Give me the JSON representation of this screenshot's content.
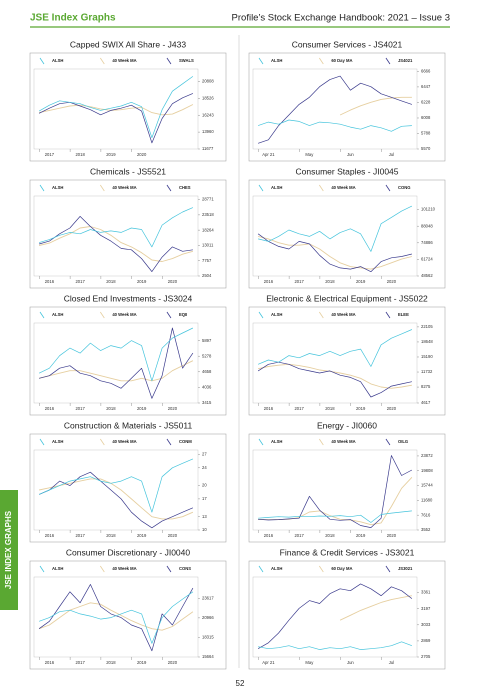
{
  "header": {
    "left": "JSE Index Graphs",
    "right": "Profile’s Stock Exchange Handbook: 2021 – Issue 3"
  },
  "side_tab": "JSE INDEX GRAPHS",
  "page_number": "52",
  "chart_data": [
    {
      "type": "line",
      "title": "Capped SWIX All Share - J433",
      "categories": [
        null,
        "2017",
        null,
        null,
        "2018",
        null,
        null,
        "2019",
        null,
        null,
        "2020",
        null,
        null,
        null,
        null,
        null
      ],
      "ylim": [
        11677,
        22500
      ],
      "yticks": [
        11677,
        13960,
        16243,
        18526,
        20808
      ],
      "series": [
        {
          "name": "ALSH",
          "color": "#45c4dc",
          "values": [
            16800,
            17600,
            18200,
            18000,
            17800,
            17300,
            16900,
            17200,
            17500,
            18000,
            17400,
            13200,
            17000,
            19500,
            20500,
            21500
          ]
        },
        {
          "name": "40 Week MA",
          "color": "#e6cfa0",
          "values": [
            16600,
            16900,
            17200,
            17500,
            17600,
            17400,
            17100,
            16900,
            17000,
            17200,
            17300,
            16600,
            16300,
            16400,
            17000,
            17700
          ]
        },
        {
          "name": "SWALS",
          "color": "#3a3a8c",
          "values": [
            16500,
            17200,
            17800,
            18000,
            17500,
            17000,
            16300,
            16900,
            17200,
            17600,
            16800,
            12500,
            15800,
            17800,
            18600,
            19200
          ]
        }
      ]
    },
    {
      "type": "line",
      "title": "Consumer Services - JS4021",
      "categories": [
        null,
        "Apr 21",
        null,
        null,
        null,
        "May",
        null,
        null,
        null,
        "Jun",
        null,
        null,
        null,
        "Jul",
        null,
        null
      ],
      "ylim": [
        5570,
        6700
      ],
      "yticks": [
        5570,
        5788,
        6008,
        6228,
        6447,
        6666
      ],
      "series": [
        {
          "name": "ALSH",
          "color": "#45c4dc",
          "values": [
            5900,
            5950,
            5920,
            5980,
            5960,
            5900,
            5950,
            5940,
            5920,
            5880,
            5850,
            5900,
            5870,
            5820,
            5890,
            5900
          ]
        },
        {
          "name": "60 Day MA",
          "color": "#e6cfa0",
          "values": [
            null,
            null,
            null,
            null,
            null,
            null,
            null,
            null,
            6050,
            6120,
            6180,
            6230,
            6270,
            6290,
            6300,
            6300
          ]
        },
        {
          "name": "JS4021",
          "color": "#3a3a8c",
          "values": [
            5650,
            5700,
            5900,
            6050,
            6200,
            6300,
            6450,
            6550,
            6600,
            6400,
            6500,
            6450,
            6350,
            6300,
            6250,
            6200
          ]
        }
      ]
    },
    {
      "type": "line",
      "title": "Chemicals - JS5521",
      "categories": [
        null,
        "2016",
        null,
        null,
        "2017",
        null,
        null,
        "2018",
        null,
        null,
        "2019",
        null,
        null,
        "2020",
        null,
        null
      ],
      "ylim": [
        2504,
        30000
      ],
      "yticks": [
        2504,
        7757,
        13011,
        18264,
        23518,
        28771
      ],
      "series": [
        {
          "name": "ALSH",
          "color": "#45c4dc",
          "values": [
            14000,
            15000,
            16500,
            17500,
            17000,
            18500,
            17500,
            18000,
            17500,
            19000,
            18500,
            12500,
            20000,
            22500,
            24500,
            26000
          ]
        },
        {
          "name": "40 Week MA",
          "color": "#e6cfa0",
          "values": [
            13000,
            13800,
            15500,
            17000,
            19000,
            19500,
            18500,
            16500,
            14000,
            12500,
            10500,
            8000,
            7500,
            8500,
            10000,
            11000
          ]
        },
        {
          "name": "CHES",
          "color": "#3a3a8c",
          "values": [
            13500,
            14500,
            17000,
            19000,
            23000,
            19500,
            16500,
            14500,
            12000,
            11500,
            8500,
            4000,
            9000,
            12500,
            11000,
            11500
          ]
        }
      ]
    },
    {
      "type": "line",
      "title": "Consumer Staples - JI0045",
      "categories": [
        null,
        "2016",
        null,
        null,
        "2017",
        null,
        null,
        "2018",
        null,
        null,
        "2019",
        null,
        null,
        "2020",
        null,
        null
      ],
      "ylim": [
        48562,
        112000
      ],
      "yticks": [
        48562,
        61724,
        74886,
        88048,
        101210
      ],
      "series": [
        {
          "name": "ALSH",
          "color": "#45c4dc",
          "values": [
            78000,
            76000,
            80000,
            85000,
            82000,
            80000,
            84000,
            78000,
            83000,
            86000,
            82000,
            68000,
            90000,
            95000,
            100000,
            104000
          ]
        },
        {
          "name": "40 Week MA",
          "color": "#e6cfa0",
          "values": [
            80000,
            78000,
            75000,
            73000,
            73000,
            74000,
            70000,
            64000,
            59000,
            56000,
            55000,
            54000,
            56000,
            59000,
            62000,
            64000
          ]
        },
        {
          "name": "CONG",
          "color": "#3a3a8c",
          "values": [
            82000,
            76000,
            72000,
            70000,
            76000,
            74000,
            65000,
            58000,
            55000,
            54000,
            56000,
            52000,
            60000,
            63000,
            64000,
            66000
          ]
        }
      ]
    },
    {
      "type": "line",
      "title": "Closed End Investments - JS3024",
      "categories": [
        null,
        "2016",
        null,
        null,
        "2017",
        null,
        null,
        "2018",
        null,
        null,
        "2019",
        null,
        null,
        "2020",
        null,
        null
      ],
      "ylim": [
        3415,
        6600
      ],
      "yticks": [
        3415,
        4036,
        4658,
        5278,
        5897
      ],
      "series": [
        {
          "name": "ALSH",
          "color": "#45c4dc",
          "values": [
            4600,
            4800,
            5300,
            5600,
            5400,
            5800,
            5500,
            5700,
            5600,
            5900,
            5700,
            4300,
            5600,
            6000,
            6200,
            6400
          ]
        },
        {
          "name": "40 Week MA",
          "color": "#e6cfa0",
          "values": [
            4400,
            4500,
            4600,
            4700,
            4700,
            4600,
            4500,
            4400,
            4300,
            4300,
            4400,
            4300,
            4400,
            4700,
            4900,
            5100
          ]
        },
        {
          "name": "EQII",
          "color": "#3a3a8c",
          "values": [
            4400,
            4500,
            4800,
            4900,
            4600,
            4500,
            4300,
            4200,
            4000,
            4400,
            4800,
            3600,
            4500,
            6400,
            4800,
            5400
          ]
        }
      ]
    },
    {
      "type": "line",
      "title": "Electronic & Electrical Equipment - JS5022",
      "categories": [
        null,
        "2016",
        null,
        null,
        "2017",
        null,
        null,
        "2018",
        null,
        null,
        "2019",
        null,
        null,
        "2020",
        null,
        null
      ],
      "ylim": [
        4617,
        23000
      ],
      "yticks": [
        4617,
        8275,
        11732,
        15190,
        18648,
        22105
      ],
      "series": [
        {
          "name": "ALSH",
          "color": "#45c4dc",
          "values": [
            13500,
            14500,
            14000,
            15500,
            15000,
            16000,
            15500,
            16500,
            15500,
            16500,
            17000,
            13000,
            18000,
            19500,
            20500,
            21500
          ]
        },
        {
          "name": "40 Week MA",
          "color": "#e6cfa0",
          "values": [
            12500,
            13000,
            13300,
            13500,
            13200,
            12800,
            12200,
            11900,
            11500,
            11000,
            10300,
            9000,
            8300,
            8000,
            8300,
            8700
          ]
        },
        {
          "name": "ELEE",
          "color": "#3a3a8c",
          "values": [
            12000,
            13500,
            14000,
            13500,
            12500,
            12000,
            11500,
            12000,
            11000,
            10500,
            9500,
            6000,
            7000,
            8500,
            9000,
            9500
          ]
        }
      ]
    },
    {
      "type": "line",
      "title": "Construction & Materials - JS5011",
      "categories": [
        null,
        "2016",
        null,
        null,
        "2017",
        null,
        null,
        "2018",
        null,
        null,
        "2019",
        null,
        null,
        "2020",
        null,
        null
      ],
      "ylim": [
        10,
        28
      ],
      "yticks": [
        10,
        13,
        17,
        20,
        24,
        27
      ],
      "series": [
        {
          "name": "ALSH",
          "color": "#45c4dc",
          "values": [
            18,
            19,
            20,
            21,
            21.5,
            22,
            21,
            20.5,
            21,
            22,
            21,
            14,
            22,
            24,
            25,
            26
          ]
        },
        {
          "name": "40 Week MA",
          "color": "#e6cfa0",
          "values": [
            19,
            19.5,
            20,
            20.5,
            21,
            21.5,
            21.5,
            20.5,
            19,
            17,
            15,
            13,
            12.5,
            12.5,
            13,
            14
          ]
        },
        {
          "name": "CONM",
          "color": "#3a3a8c",
          "values": [
            18,
            19,
            21,
            20,
            22,
            23,
            21,
            19,
            17,
            14,
            12,
            10.5,
            12,
            13,
            14,
            15
          ]
        }
      ]
    },
    {
      "type": "line",
      "title": "Energy - JI0060",
      "categories": [
        null,
        "2016",
        null,
        null,
        "2017",
        null,
        null,
        "2018",
        null,
        null,
        "2019",
        null,
        null,
        "2020",
        null,
        null
      ],
      "ylim": [
        3552,
        25500
      ],
      "yticks": [
        3552,
        7616,
        11680,
        15744,
        19808,
        23872
      ],
      "series": [
        {
          "name": "ALSH",
          "color": "#45c4dc",
          "values": [
            6800,
            7000,
            7200,
            7100,
            7300,
            7200,
            7400,
            7300,
            7500,
            7200,
            7600,
            5600,
            7800,
            8200,
            8500,
            8800
          ]
        },
        {
          "name": "40 Week MA",
          "color": "#e6cfa0",
          "values": [
            6500,
            6400,
            6400,
            6500,
            7000,
            8500,
            8800,
            7500,
            6500,
            6300,
            5800,
            5000,
            5500,
            10000,
            15000,
            18000
          ]
        },
        {
          "name": "OILG",
          "color": "#3a3a8c",
          "values": [
            6500,
            6300,
            6400,
            6600,
            6800,
            12800,
            9000,
            6500,
            6200,
            6400,
            4800,
            4200,
            6800,
            24000,
            18500,
            20000
          ]
        }
      ]
    },
    {
      "type": "line",
      "title": "Consumer Discretionary - JI0040",
      "categories": [
        null,
        "2016",
        null,
        null,
        "2017",
        null,
        null,
        "2018",
        null,
        null,
        "2019",
        null,
        null,
        "2020",
        null,
        null
      ],
      "ylim": [
        15664,
        26500
      ],
      "yticks": [
        15664,
        18315,
        20966,
        23617
      ],
      "series": [
        {
          "name": "ALSH",
          "color": "#45c4dc",
          "values": [
            20500,
            21000,
            21800,
            22000,
            21500,
            21200,
            20800,
            21000,
            21500,
            22000,
            21500,
            17500,
            21000,
            22500,
            23500,
            24500
          ]
        },
        {
          "name": "40 Week MA",
          "color": "#e6cfa0",
          "values": [
            19500,
            20000,
            21000,
            22000,
            22500,
            23000,
            22800,
            22000,
            21300,
            20600,
            20000,
            19500,
            19300,
            19800,
            20800,
            21800
          ]
        },
        {
          "name": "CONS",
          "color": "#3a3a8c",
          "values": [
            19500,
            20500,
            22500,
            24500,
            23000,
            25500,
            22500,
            21500,
            21000,
            20000,
            19500,
            16500,
            21500,
            20000,
            22500,
            25000
          ]
        }
      ]
    },
    {
      "type": "line",
      "title": "Finance & Credit Services - JS3021",
      "categories": [
        null,
        "Apr 21",
        null,
        null,
        null,
        "May",
        null,
        null,
        null,
        "Jun",
        null,
        null,
        null,
        "Jul",
        null,
        null
      ],
      "ylim": [
        2705,
        3520
      ],
      "yticks": [
        2705,
        2869,
        3033,
        3197,
        3361
      ],
      "series": [
        {
          "name": "ALSH",
          "color": "#45c4dc",
          "values": [
            2810,
            2790,
            2800,
            2820,
            2790,
            2810,
            2780,
            2800,
            2790,
            2810,
            2780,
            2790,
            2800,
            2820,
            2860,
            2820
          ]
        },
        {
          "name": "60 Day MA",
          "color": "#e6cfa0",
          "values": [
            null,
            null,
            null,
            null,
            null,
            null,
            null,
            null,
            3080,
            3130,
            3180,
            3220,
            3260,
            3290,
            3310,
            3330
          ]
        },
        {
          "name": "JS3021",
          "color": "#3a3a8c",
          "values": [
            2790,
            2850,
            2950,
            3080,
            3200,
            3280,
            3250,
            3350,
            3400,
            3380,
            3450,
            3400,
            3330,
            3420,
            3380,
            3300
          ]
        }
      ]
    }
  ]
}
